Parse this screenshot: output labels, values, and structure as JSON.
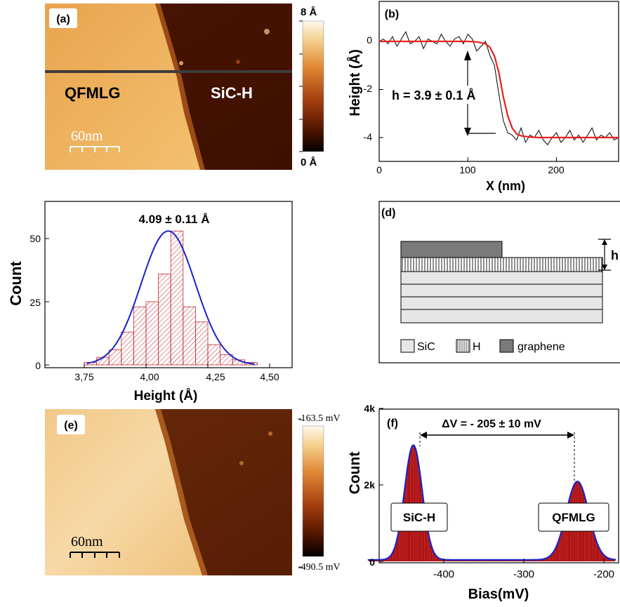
{
  "panels": {
    "a": {
      "label": "(a)",
      "left_region": "QFMLG",
      "right_region": "SiC-H",
      "scale_bar": "60nm",
      "colorbar_max": "8 Å",
      "colorbar_min": "0 Å"
    },
    "b": {
      "label": "(b)"
    },
    "c": {
      "label": ""
    },
    "d": {
      "label": "(d)",
      "height_marker": "h",
      "legend": [
        "SiC",
        "H",
        "graphene"
      ]
    },
    "e": {
      "label": "(e)",
      "scale_bar": "60nm",
      "colorbar_max": "-163.5 mV",
      "colorbar_min": "-490.5 mV"
    },
    "f": {
      "label": "(f)"
    }
  },
  "colors": {
    "map_light": "#f6d49a",
    "map_dark": "#3a0d00",
    "fit_red": "#e8211d",
    "gauss_blue": "#1a22c8",
    "hist_hatch": "#c0282b",
    "bar_fill": "#b01212"
  },
  "chart_data": [
    {
      "id": "b",
      "type": "line",
      "xlabel": "X (nm)",
      "ylabel": "Height (Å)",
      "xlim": [
        0,
        270
      ],
      "ylim": [
        -4.6,
        0.9
      ],
      "xticks": [
        "0",
        "100",
        "200"
      ],
      "yticks": [
        "0",
        "-2",
        "-4"
      ],
      "annotation": "h = 3.9 ± 0.1 Å",
      "series": [
        {
          "role": "measured",
          "x": [
            0,
            5,
            10,
            15,
            20,
            25,
            30,
            35,
            40,
            45,
            50,
            55,
            60,
            65,
            70,
            75,
            80,
            85,
            90,
            95,
            100,
            105,
            110,
            115,
            120,
            125,
            130,
            135,
            140,
            145,
            150,
            155,
            160,
            165,
            170,
            175,
            180,
            185,
            190,
            195,
            200,
            205,
            210,
            215,
            220,
            225,
            230,
            235,
            240,
            245,
            250,
            255,
            260,
            265,
            270
          ],
          "y": [
            0.0,
            0.1,
            -0.1,
            0.2,
            -0.2,
            0.1,
            0.4,
            -0.1,
            0.0,
            0.2,
            -0.3,
            0.1,
            0.0,
            -0.1,
            0.3,
            0.0,
            -0.2,
            0.1,
            0.2,
            -0.1,
            0.3,
            0.1,
            -0.4,
            -0.2,
            0.0,
            -0.6,
            -1.0,
            -2.2,
            -3.3,
            -3.8,
            -3.9,
            -4.1,
            -3.6,
            -4.2,
            -3.9,
            -4.0,
            -3.7,
            -4.1,
            -4.3,
            -4.0,
            -3.8,
            -4.2,
            -4.0,
            -3.7,
            -4.1,
            -3.9,
            -4.2,
            -3.9,
            -3.6,
            -4.1,
            -3.9,
            -4.0,
            -3.8,
            -4.1,
            -4.0
          ]
        },
        {
          "role": "fit",
          "x": [
            0,
            20,
            40,
            60,
            80,
            100,
            110,
            120,
            125,
            130,
            135,
            140,
            145,
            150,
            155,
            160,
            170,
            180,
            200,
            220,
            240,
            270
          ],
          "y": [
            0.0,
            0.0,
            0.0,
            0.0,
            0.0,
            0.0,
            -0.02,
            -0.1,
            -0.25,
            -0.6,
            -1.3,
            -2.3,
            -3.1,
            -3.6,
            -3.85,
            -3.93,
            -3.98,
            -4.0,
            -4.0,
            -4.0,
            -4.0,
            -4.0
          ]
        }
      ]
    },
    {
      "id": "c",
      "type": "bar",
      "xlabel": "Height (Å)",
      "ylabel": "Count",
      "xlim": [
        3.62,
        4.56
      ],
      "ylim": [
        0,
        58
      ],
      "xticks": [
        "3,75",
        "4,00",
        "4,25",
        "4,50"
      ],
      "yticks": [
        "0",
        "25",
        "50"
      ],
      "annotation": "4.09 ± 0.11 Å",
      "bin_width": 0.05,
      "bin_starts": [
        3.75,
        3.8,
        3.85,
        3.9,
        3.95,
        4.0,
        4.05,
        4.1,
        4.15,
        4.2,
        4.25,
        4.3,
        4.35,
        4.4
      ],
      "counts": [
        1,
        3,
        6,
        13,
        23,
        25,
        36,
        53,
        23,
        17,
        8,
        4,
        2,
        1
      ],
      "gaussian": {
        "mean": 4.09,
        "sigma": 0.11,
        "amplitude": 53
      }
    },
    {
      "id": "f",
      "type": "bar",
      "xlabel": "Bias(mV)",
      "ylabel": "Count",
      "xlim": [
        -495,
        -185
      ],
      "ylim": [
        0,
        4000
      ],
      "xticks": [
        "-400",
        "-300",
        "-200"
      ],
      "yticks": [
        "0",
        "2k",
        "4k"
      ],
      "annotation": "ΔV = - 205 ± 10 mV",
      "peak_labels": [
        "SiC-H",
        "QFMLG"
      ],
      "peaks": [
        {
          "center": -438,
          "height": 3000,
          "sigma": 11
        },
        {
          "center": -233,
          "height": 2050,
          "sigma": 14
        }
      ],
      "baseline": 40
    }
  ]
}
